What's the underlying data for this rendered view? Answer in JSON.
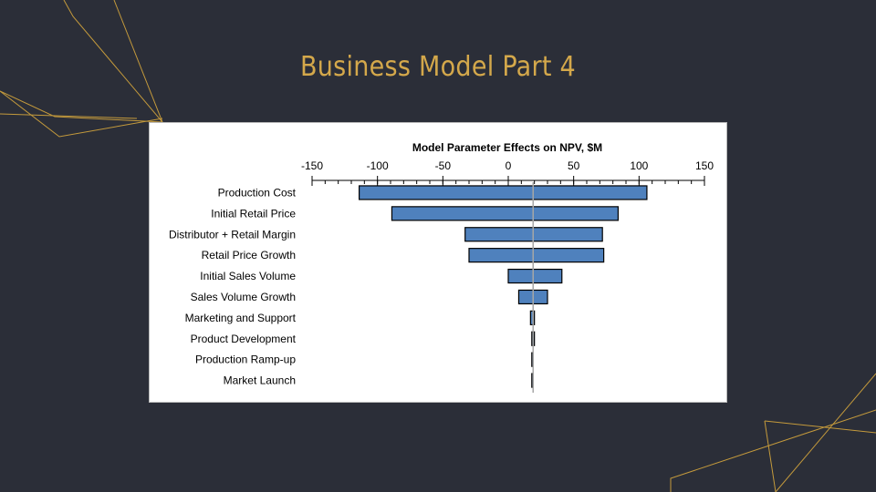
{
  "slide": {
    "title": "Business Model Part 4"
  },
  "colors": {
    "background": "#2b2e38",
    "accent": "#d4a84b",
    "bar_fill": "#4f81bd",
    "bar_stroke": "#000000",
    "baseline": "#a6a6a6"
  },
  "chart_data": {
    "type": "bar",
    "orientation": "horizontal",
    "variant": "tornado",
    "title": "Model Parameter Effects on NPV, $M",
    "xlim": [
      -150,
      150
    ],
    "x_ticks": [
      -150,
      -100,
      -50,
      0,
      50,
      100,
      150
    ],
    "x_axis_position": "top",
    "baseline": 19,
    "grid": false,
    "legend": "none",
    "categories": [
      "Production Cost",
      "Initial Retail Price",
      "Distributor + Retail Margin",
      "Retail Price Growth",
      "Initial Sales Volume",
      "Sales Volume Growth",
      "Marketing and Support",
      "Product Development",
      "Production Ramp-up",
      "Market Launch"
    ],
    "low": [
      -114,
      -89,
      -33,
      -30,
      0,
      8,
      17,
      18,
      18,
      18
    ],
    "high": [
      106,
      84,
      72,
      73,
      41,
      30,
      20,
      20,
      19,
      19
    ]
  }
}
